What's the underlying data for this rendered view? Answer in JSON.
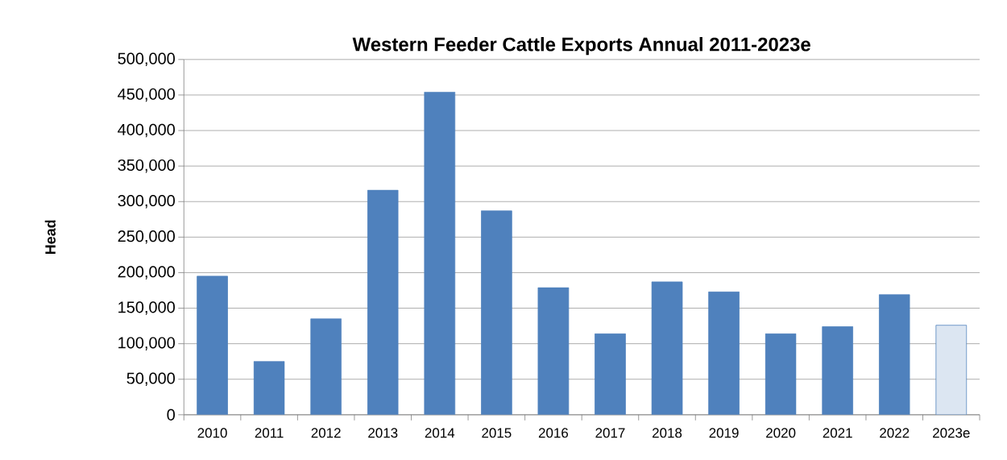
{
  "chart_data": {
    "type": "bar",
    "title": "Western Feeder Cattle Exports Annual 2011-2023e",
    "ylabel": "Head",
    "categories": [
      "2010",
      "2011",
      "2012",
      "2013",
      "2014",
      "2015",
      "2016",
      "2017",
      "2018",
      "2019",
      "2020",
      "2021",
      "2022",
      "2023e"
    ],
    "values": [
      195000,
      75000,
      135000,
      316000,
      454000,
      287000,
      179000,
      114000,
      187000,
      173000,
      114000,
      124000,
      169000,
      126000
    ],
    "color": "#4f81bd",
    "colors": [
      "#4f81bd",
      "#4f81bd",
      "#4f81bd",
      "#4f81bd",
      "#4f81bd",
      "#4f81bd",
      "#4f81bd",
      "#4f81bd",
      "#4f81bd",
      "#4f81bd",
      "#4f81bd",
      "#4f81bd",
      "#4f81bd",
      "#dce6f2"
    ],
    "ylim": [
      0,
      500000
    ],
    "yticks": [
      0,
      {
        "value": 50000,
        "label": "50,000"
      },
      {
        "value": 100000,
        "label": "100,000"
      },
      {
        "value": 150000,
        "label": "150,000"
      },
      {
        "value": 200000,
        "label": "200,000"
      },
      {
        "value": 250000,
        "label": "250,000"
      },
      {
        "value": 300000,
        "label": "300,000"
      },
      {
        "value": 350000,
        "label": "350,000"
      },
      {
        "value": 400000,
        "label": "400,000"
      },
      {
        "value": 450000,
        "label": "450,000"
      },
      {
        "value": 500000,
        "label": "500,000"
      }
    ],
    "grid": "y"
  }
}
